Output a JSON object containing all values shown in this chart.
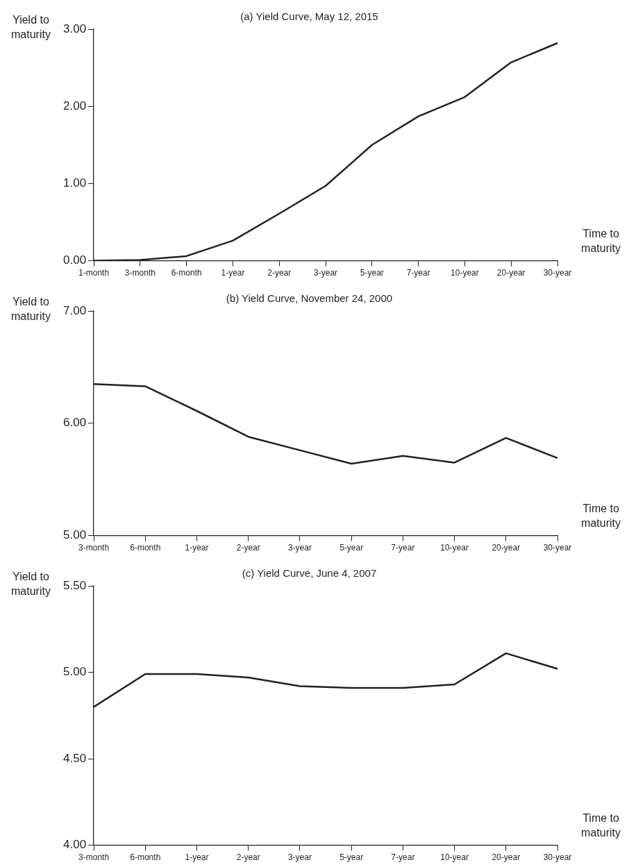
{
  "chart_data": [
    {
      "type": "line",
      "title": "(a) Yield Curve, May 12, 2015",
      "ylabel": "Yield to maturity",
      "xlabel": "Time to maturity",
      "categories": [
        "1-month",
        "3-month",
        "6-month",
        "1-year",
        "2-year",
        "3-year",
        "5-year",
        "7-year",
        "10-year",
        "20-year",
        "30-year"
      ],
      "values": [
        0.0,
        0.01,
        0.06,
        0.26,
        0.61,
        0.97,
        1.5,
        1.87,
        2.12,
        2.57,
        2.82
      ],
      "color": "#231f20",
      "ylim": [
        0,
        3
      ],
      "yticks": [
        {
          "value": 0,
          "label": "0.00"
        },
        {
          "value": 1,
          "label": "1.00"
        },
        {
          "value": 2,
          "label": "2.00"
        },
        {
          "value": 3,
          "label": "3.00"
        }
      ],
      "grid": false
    },
    {
      "type": "line",
      "title": "(b) Yield Curve, November 24, 2000",
      "ylabel": "Yield to maturity",
      "xlabel": "Time to maturity",
      "categories": [
        "3-month",
        "6-month",
        "1-year",
        "2-year",
        "3-year",
        "5-year",
        "7-year",
        "10-year",
        "20-year",
        "30-year"
      ],
      "values": [
        6.35,
        6.33,
        6.11,
        5.88,
        5.76,
        5.64,
        5.71,
        5.65,
        5.87,
        5.69
      ],
      "color": "#231f20",
      "ylim": [
        5,
        7
      ],
      "yticks": [
        {
          "value": 5,
          "label": "5.00"
        },
        {
          "value": 6,
          "label": "6.00"
        },
        {
          "value": 7,
          "label": "7.00"
        }
      ],
      "grid": false
    },
    {
      "type": "line",
      "title": "(c) Yield Curve, June 4, 2007",
      "ylabel": "Yield to maturity",
      "xlabel": "Time to maturity",
      "categories": [
        "3-month",
        "6-month",
        "1-year",
        "2-year",
        "3-year",
        "5-year",
        "7-year",
        "10-year",
        "20-year",
        "30-year"
      ],
      "values": [
        4.8,
        4.99,
        4.99,
        4.97,
        4.92,
        4.91,
        4.91,
        4.93,
        5.11,
        5.02
      ],
      "color": "#231f20",
      "ylim": [
        4,
        5.5
      ],
      "yticks": [
        {
          "value": 4,
          "label": "4.00"
        },
        {
          "value": 4.5,
          "label": "4.50"
        },
        {
          "value": 5,
          "label": "5.00"
        },
        {
          "value": 5.5,
          "label": "5.50"
        }
      ],
      "grid": false
    }
  ]
}
